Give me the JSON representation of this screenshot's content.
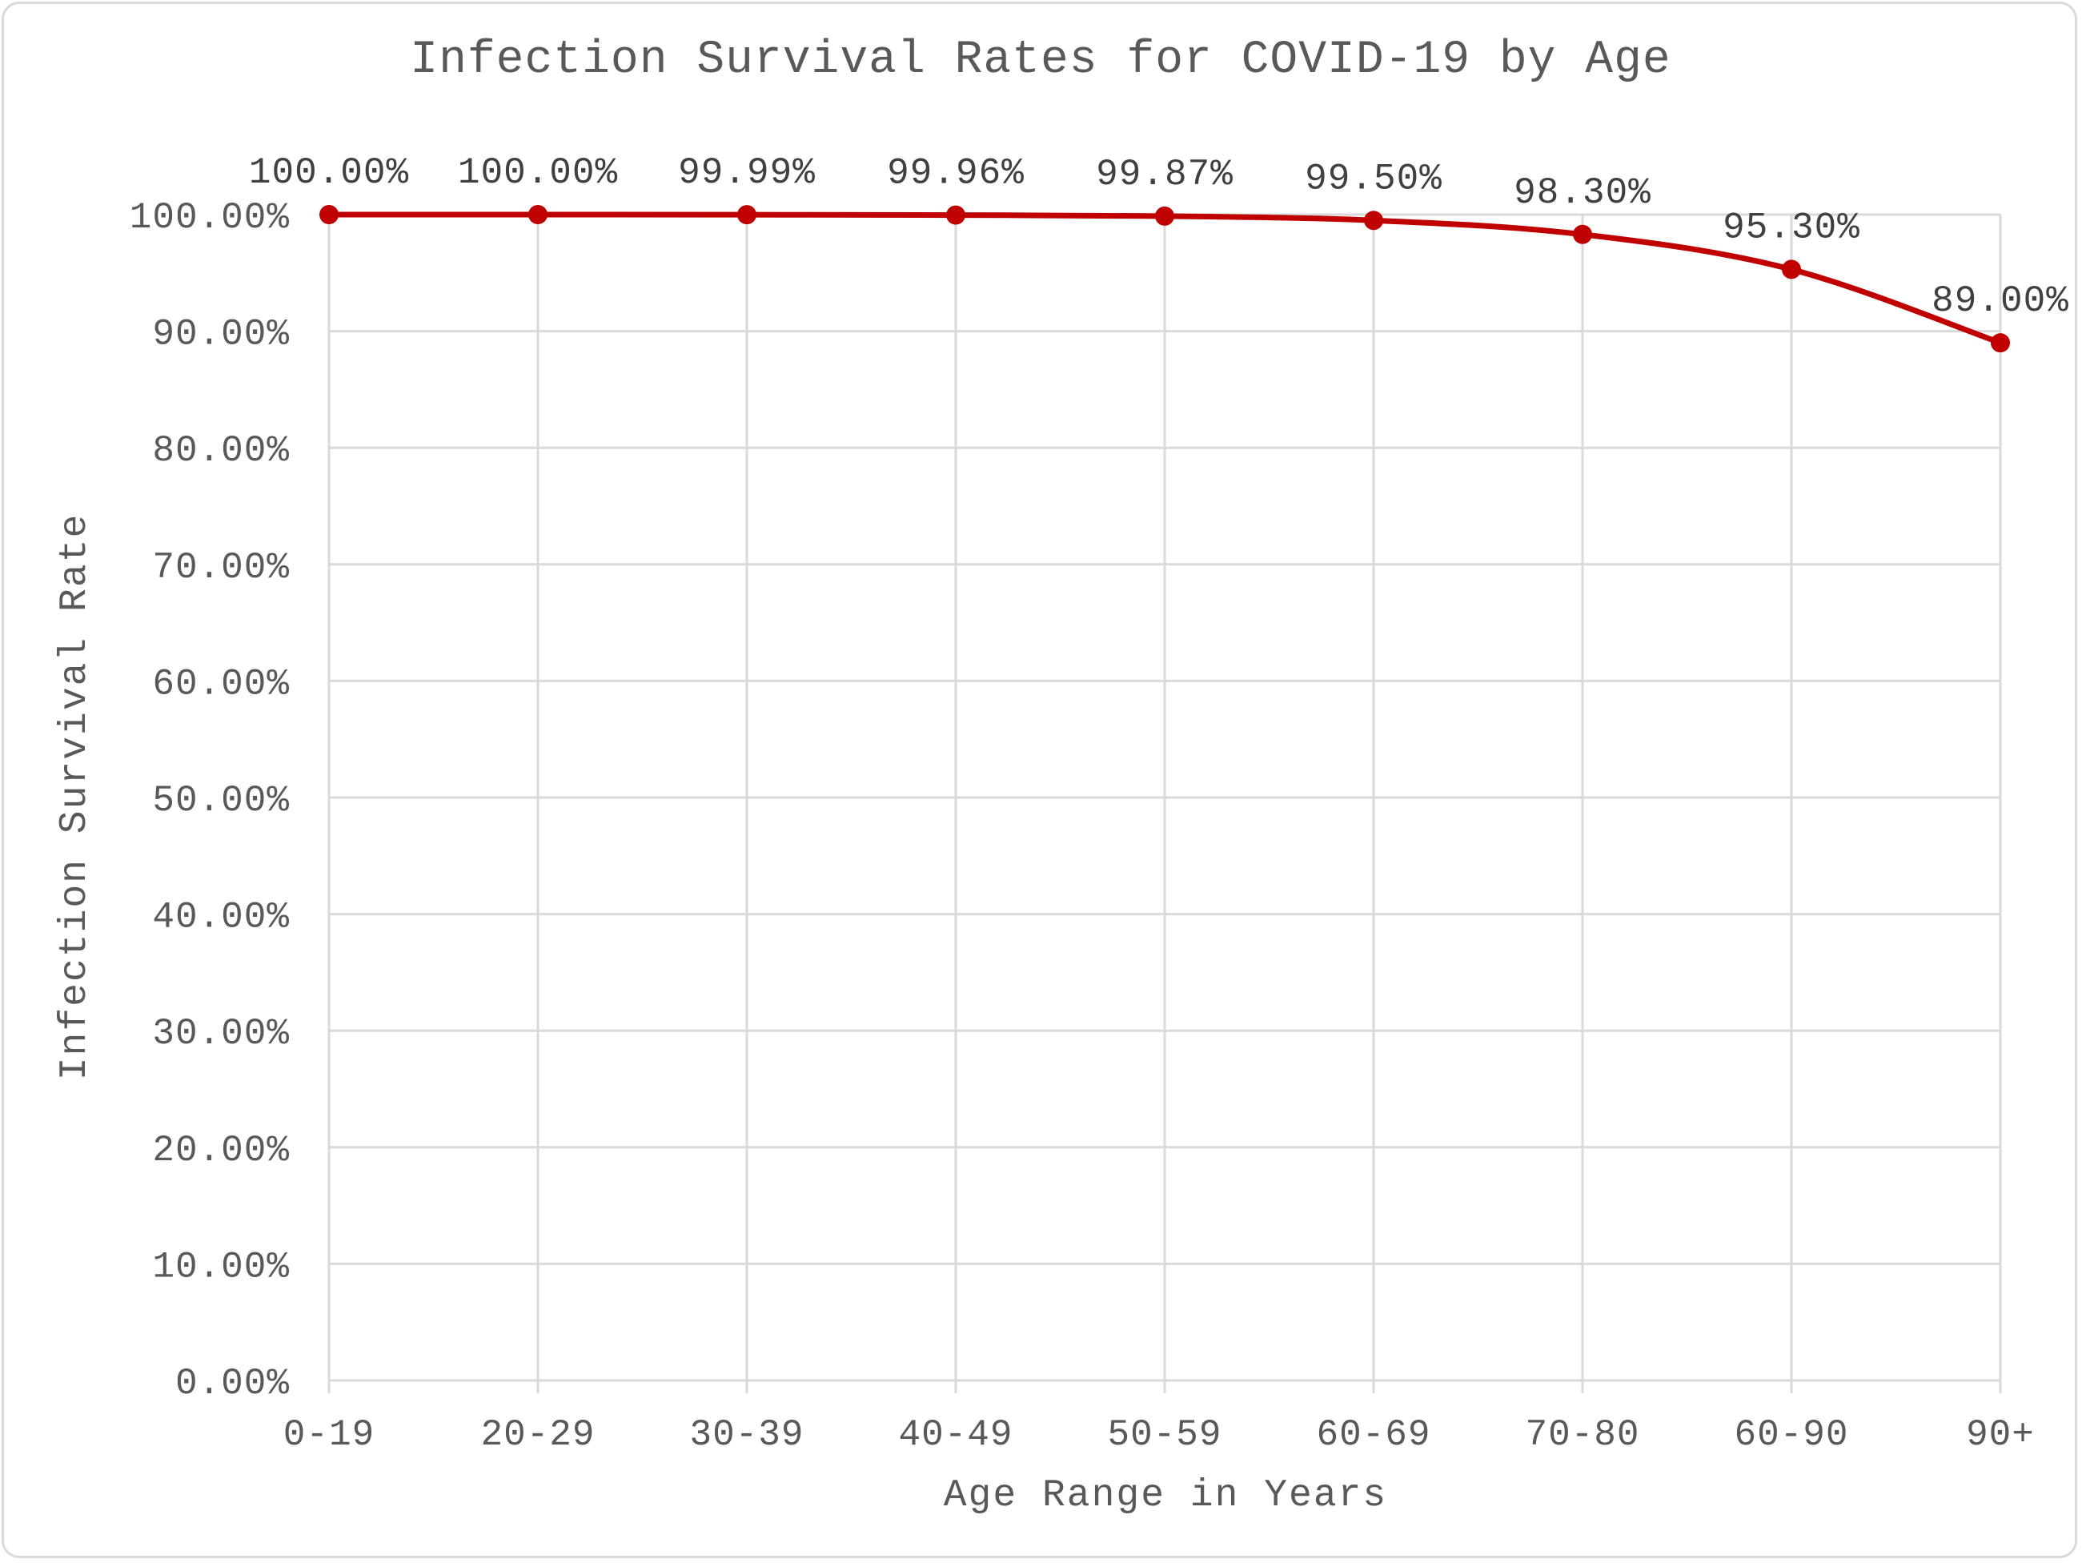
{
  "chart_data": {
    "type": "line",
    "title": "Infection Survival Rates for COVID-19 by Age",
    "xlabel": "Age Range in Years",
    "ylabel": "Infection Survival Rate",
    "categories": [
      "0-19",
      "20-29",
      "30-39",
      "40-49",
      "50-59",
      "60-69",
      "70-80",
      "60-90",
      "90+"
    ],
    "series": [
      {
        "values": [
          100.0,
          100.0,
          99.99,
          99.96,
          99.87,
          99.5,
          98.3,
          95.3,
          89.0
        ],
        "color": "#c00000"
      }
    ],
    "data_labels": [
      "100.00%",
      "100.00%",
      "99.99%",
      "99.96%",
      "99.87%",
      "99.50%",
      "98.30%",
      "95.30%",
      "89.00%"
    ],
    "y_ticks": [
      "0.00%",
      "10.00%",
      "20.00%",
      "30.00%",
      "40.00%",
      "50.00%",
      "60.00%",
      "70.00%",
      "80.00%",
      "90.00%",
      "100.00%"
    ],
    "ylim": [
      0,
      100
    ],
    "grid": true,
    "smoothed": true,
    "legend": "none"
  }
}
